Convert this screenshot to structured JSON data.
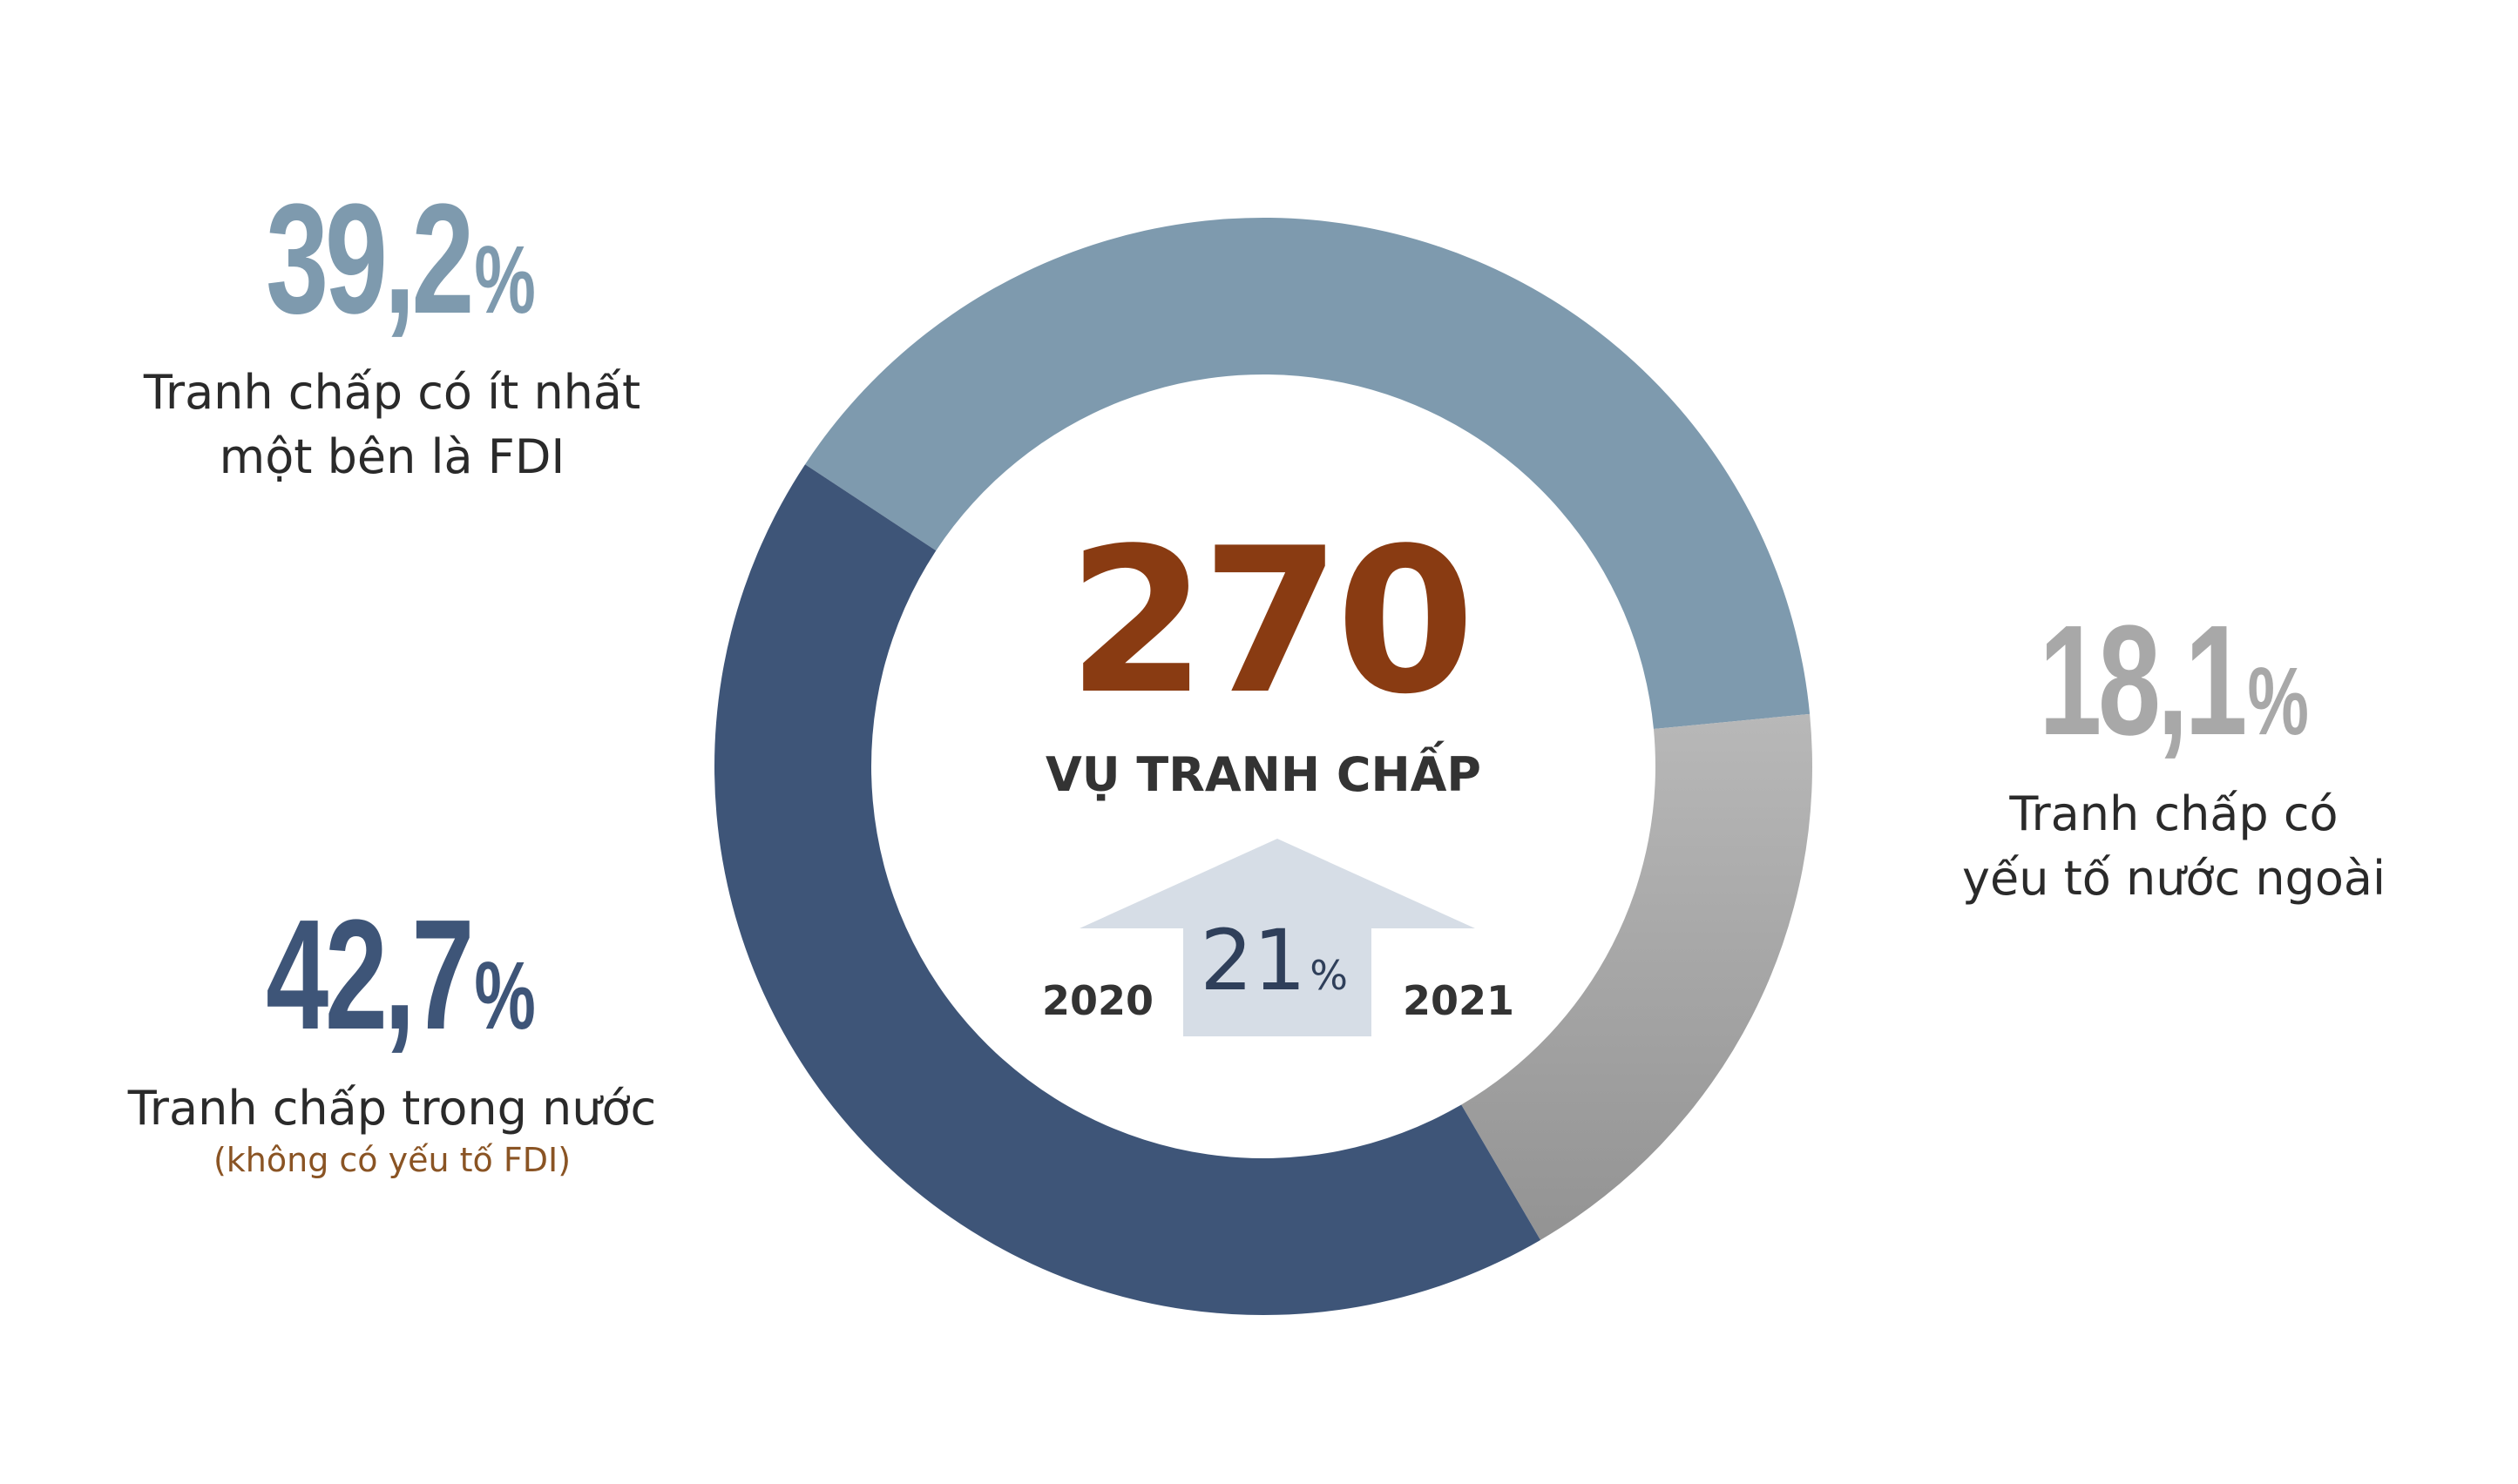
{
  "chart_data": {
    "type": "pie",
    "style": "donut",
    "slices": [
      {
        "label": "Tranh chấp có ít nhất một bên là FDI",
        "value": 39.2,
        "color": "#7e9aae"
      },
      {
        "label": "Tranh chấp có yếu tố nước ngoài",
        "value": 18.1,
        "color": "#a8a8a8"
      },
      {
        "label": "Tranh chấp trong nước",
        "value": 42.7,
        "color": "#3e5578"
      }
    ],
    "center": {
      "value": "270",
      "label": "VỤ TRANH CHẤP"
    },
    "growth": {
      "from_year": "2020",
      "to_year": "2021",
      "value": "21",
      "unit": "%"
    }
  },
  "callouts": {
    "fdi": {
      "value": "39,2",
      "unit": "%",
      "line1": "Tranh chấp có ít nhất",
      "line2": "một bên là FDI"
    },
    "foreign": {
      "value": "18,1",
      "unit": "%",
      "line1": "Tranh chấp có",
      "line2": "yếu tố nước ngoài"
    },
    "domestic": {
      "value": "42,7",
      "unit": "%",
      "line1": "Tranh chấp trong nước",
      "note": "(không có yếu tố FDI)"
    }
  },
  "colors": {
    "total": "#893b12",
    "arrow": "#d6dde6",
    "growth_text": "#2f3f5a",
    "note": "#8a5424"
  }
}
